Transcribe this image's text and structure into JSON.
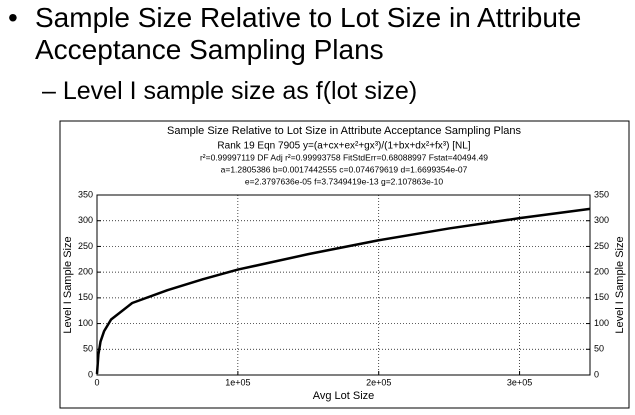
{
  "slide": {
    "bullet": "Sample Size Relative to Lot Size in Attribute Acceptance Sampling Plans",
    "subbullet": "Level I sample size as f(lot size)"
  },
  "chart_data": {
    "type": "line",
    "title": "Sample Size Relative to Lot Size in Attribute Acceptance Sampling Plans",
    "annotations": [
      "Rank 19  Eqn 7905  y=(a+cx+ex²+gx³)/(1+bx+dx²+fx³) [NL]",
      "r²=0.99997119  DF Adj r²=0.99993758  FitStdErr=0.68088997  Fstat=40494.49",
      "a=1.2805386 b=0.0017442555 c=0.074679619 d=1.6699354e-07",
      "e=2.3797636e-05 f=3.7349419e-13 g=2.107863e-10"
    ],
    "xlabel": "Avg Lot Size",
    "ylabel": "Level I Sample Size",
    "y2label": "Level I Sample Size",
    "x": [
      0,
      1000,
      2500,
      5000,
      10000,
      25000,
      50000,
      75000,
      100000,
      150000,
      200000,
      250000,
      300000,
      350000
    ],
    "series": [
      {
        "name": "Level I",
        "color": "#000000",
        "values": [
          2,
          40,
          65,
          85,
          108,
          140,
          165,
          186,
          205,
          235,
          262,
          285,
          305,
          323
        ]
      }
    ],
    "xlim": [
      0,
      350000
    ],
    "xticks": [
      0,
      {
        "value": 100000,
        "label": "1e+05"
      },
      {
        "value": 200000,
        "label": "2e+05"
      },
      {
        "value": 300000,
        "label": "3e+05"
      }
    ],
    "ylim": [
      0,
      350
    ],
    "yticks": [
      0,
      50,
      100,
      150,
      200,
      250,
      300,
      350
    ],
    "y2lim": [
      0,
      350
    ],
    "y2ticks": [
      0,
      50,
      100,
      150,
      200,
      250,
      300,
      350
    ],
    "grid": true
  }
}
